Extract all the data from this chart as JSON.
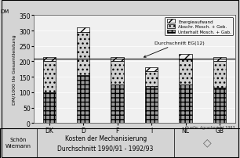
{
  "categories": [
    "DK",
    "D",
    "F",
    "I",
    "NL",
    "GB"
  ],
  "unterhalt": [
    100,
    155,
    125,
    120,
    125,
    115
  ],
  "abschr": [
    100,
    140,
    75,
    48,
    80,
    85
  ],
  "energie": [
    15,
    15,
    15,
    12,
    20,
    15
  ],
  "bar_width": 0.38,
  "ylim": [
    0,
    350
  ],
  "yticks": [
    0,
    50,
    100,
    150,
    200,
    250,
    300,
    350
  ],
  "ylabel": "DM/1000 tle Gesamtleistung",
  "source_label": "Quelle: Agrarbericht 1993",
  "durchschnitt_value": 210,
  "durchschnitt_label": "Durchschnitt EG(12)",
  "dm_label": "DM",
  "title1": "Kosten der Mechanisierung",
  "title2": "Durchschnitt 1990/91 - 1992/93",
  "author_line1": "Schön",
  "author_line2": "Wiemann",
  "legend_labels": [
    "Energieaufwand",
    "Abschr. Mosch. + Geb.",
    "Unterhalt Mosch. + Gab."
  ],
  "color_unterhalt": "#999999",
  "color_abschr": "#d0d0d0",
  "color_energie": "#eeeeee",
  "hatch_unterhalt": "+++",
  "hatch_abschr": "...",
  "hatch_energie": "///",
  "bg_color": "#d4d4d4",
  "plot_bg": "#f0f0f0",
  "grid_color": "#ffffff",
  "spine_color": "#444444"
}
